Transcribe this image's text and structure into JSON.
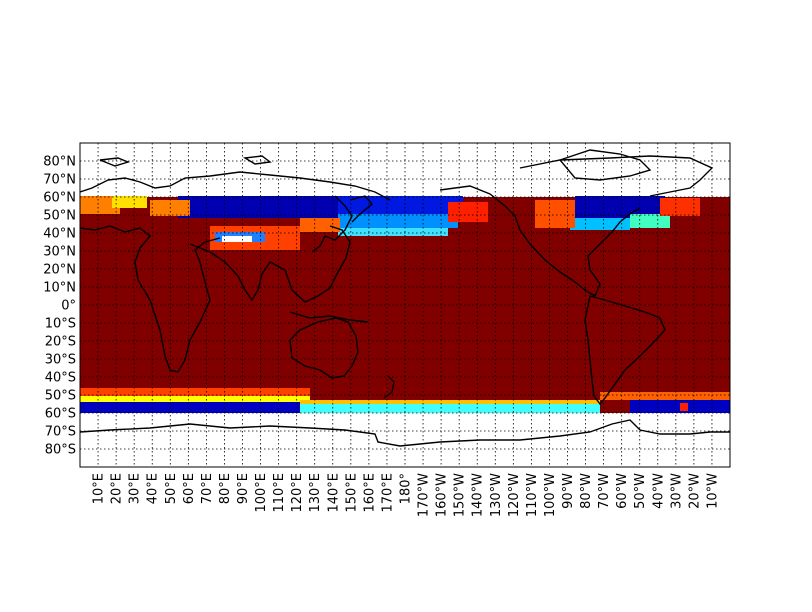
{
  "map": {
    "projection": "cylindrical equidistant",
    "field": "sea surface field (jet colormap), masked over land and poleward of 60°",
    "colormap": "jet",
    "colors": {
      "ocean_fill": "#800000",
      "coastline": "#000000",
      "grid": "#000000",
      "frame": "#000000"
    },
    "lat_range": [
      -90,
      90
    ],
    "lon_range": [
      0,
      360
    ],
    "lat_labels": [
      "80°N",
      "70°N",
      "60°N",
      "50°N",
      "40°N",
      "30°N",
      "20°N",
      "10°N",
      "0°",
      "10°S",
      "20°S",
      "30°S",
      "40°S",
      "50°S",
      "60°S",
      "70°S",
      "80°S"
    ],
    "lon_labels": [
      "10°E",
      "20°E",
      "30°E",
      "40°E",
      "50°E",
      "60°E",
      "70°E",
      "80°E",
      "90°E",
      "100°E",
      "110°E",
      "120°E",
      "130°E",
      "140°E",
      "150°E",
      "160°E",
      "170°E",
      "180°",
      "170°W",
      "160°W",
      "150°W",
      "140°W",
      "130°W",
      "120°W",
      "110°W",
      "100°W",
      "90°W",
      "80°W",
      "70°W",
      "60°W",
      "50°W",
      "40°W",
      "30°W",
      "20°W",
      "10°W"
    ],
    "gridlines": true
  }
}
